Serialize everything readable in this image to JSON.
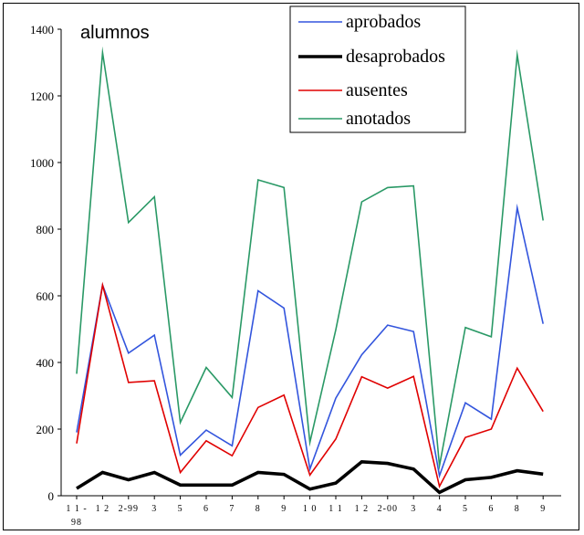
{
  "chart_data": {
    "type": "line",
    "ylabel": "alumnos",
    "xlabel": "",
    "ylim": [
      0,
      1400
    ],
    "yticks": [
      0,
      200,
      400,
      600,
      800,
      1000,
      1200,
      1400
    ],
    "categories": [
      "1 1 -\n98",
      "1 2",
      "2-99",
      "3",
      "5",
      "6",
      "7",
      "8",
      "9",
      "1 0",
      "1 1",
      "1 2",
      "2-00",
      "3",
      "4",
      "5",
      "6",
      "8",
      "9"
    ],
    "x": [
      0,
      1,
      2,
      3,
      4,
      5,
      6,
      7,
      8,
      9,
      10,
      11,
      12,
      13,
      14,
      15,
      16,
      17,
      18
    ],
    "series": [
      {
        "name": "aprobados",
        "color": "#3355dd",
        "width": 1.6,
        "values": [
          190,
          632,
          428,
          482,
          122,
          197,
          150,
          615,
          563,
          80,
          293,
          423,
          512,
          493,
          60,
          279,
          230,
          864,
          516
        ]
      },
      {
        "name": "desaprobados",
        "color": "#000000",
        "width": 3.6,
        "values": [
          22,
          70,
          48,
          70,
          32,
          32,
          32,
          70,
          64,
          20,
          38,
          102,
          97,
          80,
          10,
          48,
          55,
          75,
          65
        ]
      },
      {
        "name": "ausentes",
        "color": "#e00000",
        "width": 1.6,
        "values": [
          157,
          632,
          340,
          345,
          70,
          165,
          120,
          265,
          302,
          62,
          170,
          357,
          323,
          358,
          28,
          175,
          200,
          383,
          253
        ]
      },
      {
        "name": "anotados",
        "color": "#2a9966",
        "width": 1.6,
        "values": [
          366,
          1330,
          820,
          897,
          220,
          385,
          295,
          948,
          925,
          160,
          498,
          882,
          925,
          930,
          90,
          505,
          477,
          1323,
          826
        ]
      }
    ],
    "legend_position": "top-center",
    "grid": false
  }
}
